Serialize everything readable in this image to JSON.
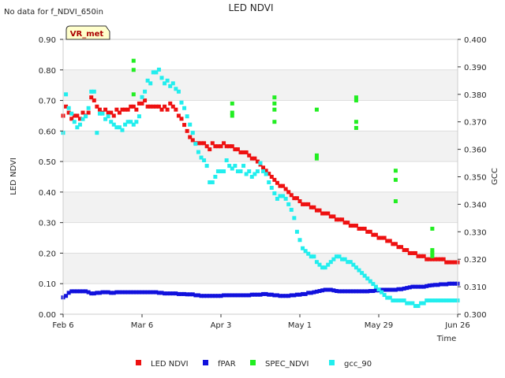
{
  "notice": "No data for f_NDVI_650in",
  "badge": "VR_met",
  "chart_data": {
    "type": "scatter",
    "title": "LED NDVI",
    "xlabel": "Time",
    "ylabel_left": "LED NDVI",
    "ylabel_right": "GCC",
    "xlim": [
      0,
      140
    ],
    "ylim_left": [
      0,
      0.9
    ],
    "ylim_right": [
      0.3,
      0.4
    ],
    "grid": true,
    "x_ticks": [
      {
        "label": "Feb 6",
        "x": 0
      },
      {
        "label": "Mar 6",
        "x": 28
      },
      {
        "label": "Apr 3",
        "x": 56
      },
      {
        "label": "May 1",
        "x": 84
      },
      {
        "label": "May 29",
        "x": 112
      },
      {
        "label": "Jun 26",
        "x": 140
      }
    ],
    "y_ticks_left": [
      "0.00",
      "0.10",
      "0.20",
      "0.30",
      "0.40",
      "0.50",
      "0.60",
      "0.70",
      "0.80",
      "0.90"
    ],
    "y_ticks_right": [
      "0.300",
      "0.310",
      "0.320",
      "0.330",
      "0.340",
      "0.350",
      "0.360",
      "0.370",
      "0.380",
      "0.390",
      "0.400"
    ],
    "legend": {
      "placement": "bottom"
    },
    "series": [
      {
        "name": "LED NDVI",
        "axis": "left",
        "color": "#ee1111",
        "x": [
          0,
          1,
          2,
          3,
          4,
          5,
          6,
          7,
          8,
          9,
          10,
          11,
          12,
          13,
          14,
          15,
          16,
          17,
          18,
          19,
          20,
          21,
          22,
          23,
          24,
          25,
          26,
          27,
          28,
          29,
          30,
          31,
          32,
          33,
          34,
          35,
          36,
          37,
          38,
          39,
          40,
          41,
          42,
          43,
          44,
          45,
          46,
          47,
          48,
          49,
          50,
          51,
          52,
          53,
          54,
          55,
          56,
          57,
          58,
          59,
          60,
          61,
          62,
          63,
          64,
          65,
          66,
          67,
          68,
          69,
          70,
          71,
          72,
          73,
          74,
          75,
          76,
          77,
          78,
          79,
          80,
          81,
          82,
          83,
          84,
          85,
          86,
          87,
          88,
          89,
          90,
          91,
          92,
          93,
          94,
          95,
          96,
          97,
          98,
          99,
          100,
          101,
          102,
          103,
          104,
          105,
          106,
          107,
          108,
          109,
          110,
          111,
          112,
          113,
          114,
          115,
          116,
          117,
          118,
          119,
          120,
          121,
          122,
          123,
          124,
          125,
          126,
          127,
          128,
          129,
          130,
          131,
          132,
          133,
          134,
          135,
          136,
          137,
          138,
          139,
          140
        ],
        "y": [
          0.65,
          0.68,
          0.66,
          0.64,
          0.65,
          0.65,
          0.64,
          0.66,
          0.65,
          0.66,
          0.71,
          0.7,
          0.68,
          0.67,
          0.66,
          0.67,
          0.66,
          0.66,
          0.65,
          0.67,
          0.66,
          0.67,
          0.67,
          0.67,
          0.68,
          0.68,
          0.67,
          0.69,
          0.69,
          0.7,
          0.68,
          0.68,
          0.68,
          0.68,
          0.68,
          0.67,
          0.68,
          0.67,
          0.69,
          0.68,
          0.67,
          0.65,
          0.64,
          0.62,
          0.6,
          0.58,
          0.57,
          0.56,
          0.56,
          0.56,
          0.56,
          0.55,
          0.54,
          0.56,
          0.55,
          0.55,
          0.55,
          0.56,
          0.55,
          0.55,
          0.55,
          0.54,
          0.54,
          0.53,
          0.53,
          0.53,
          0.52,
          0.51,
          0.51,
          0.5,
          0.49,
          0.48,
          0.47,
          0.46,
          0.45,
          0.44,
          0.43,
          0.42,
          0.42,
          0.41,
          0.4,
          0.39,
          0.38,
          0.38,
          0.37,
          0.36,
          0.36,
          0.36,
          0.35,
          0.35,
          0.34,
          0.34,
          0.33,
          0.33,
          0.33,
          0.32,
          0.32,
          0.31,
          0.31,
          0.31,
          0.3,
          0.3,
          0.29,
          0.29,
          0.29,
          0.28,
          0.28,
          0.28,
          0.27,
          0.27,
          0.26,
          0.26,
          0.25,
          0.25,
          0.25,
          0.24,
          0.24,
          0.23,
          0.23,
          0.22,
          0.22,
          0.21,
          0.21,
          0.2,
          0.2,
          0.2,
          0.19,
          0.19,
          0.19,
          0.18,
          0.18,
          0.18,
          0.18,
          0.18,
          0.18,
          0.18,
          0.17,
          0.17,
          0.17,
          0.17,
          0.17
        ]
      },
      {
        "name": "fPAR",
        "axis": "left",
        "color": "#1111dd",
        "x": [
          0,
          1,
          2,
          3,
          4,
          5,
          6,
          7,
          8,
          9,
          10,
          11,
          12,
          13,
          14,
          15,
          16,
          17,
          18,
          19,
          20,
          21,
          22,
          23,
          24,
          25,
          26,
          27,
          28,
          29,
          30,
          31,
          32,
          33,
          34,
          35,
          36,
          37,
          38,
          39,
          40,
          41,
          42,
          43,
          44,
          45,
          46,
          47,
          48,
          49,
          50,
          51,
          52,
          53,
          54,
          55,
          56,
          57,
          58,
          59,
          60,
          61,
          62,
          63,
          64,
          65,
          66,
          67,
          68,
          69,
          70,
          71,
          72,
          73,
          74,
          75,
          76,
          77,
          78,
          79,
          80,
          81,
          82,
          83,
          84,
          85,
          86,
          87,
          88,
          89,
          90,
          91,
          92,
          93,
          94,
          95,
          96,
          97,
          98,
          99,
          100,
          101,
          102,
          103,
          104,
          105,
          106,
          107,
          108,
          109,
          110,
          111,
          112,
          113,
          114,
          115,
          116,
          117,
          118,
          119,
          120,
          121,
          122,
          123,
          124,
          125,
          126,
          127,
          128,
          129,
          130,
          131,
          132,
          133,
          134,
          135,
          136,
          137,
          138,
          139,
          140
        ],
        "y": [
          0.055,
          0.06,
          0.07,
          0.075,
          0.075,
          0.075,
          0.075,
          0.075,
          0.075,
          0.072,
          0.068,
          0.068,
          0.07,
          0.07,
          0.072,
          0.072,
          0.072,
          0.07,
          0.07,
          0.072,
          0.072,
          0.072,
          0.072,
          0.072,
          0.072,
          0.072,
          0.072,
          0.072,
          0.072,
          0.072,
          0.072,
          0.072,
          0.072,
          0.072,
          0.07,
          0.07,
          0.068,
          0.068,
          0.068,
          0.068,
          0.068,
          0.066,
          0.066,
          0.066,
          0.065,
          0.065,
          0.065,
          0.062,
          0.062,
          0.06,
          0.06,
          0.06,
          0.06,
          0.06,
          0.06,
          0.06,
          0.06,
          0.062,
          0.062,
          0.062,
          0.062,
          0.062,
          0.062,
          0.062,
          0.062,
          0.062,
          0.062,
          0.064,
          0.064,
          0.064,
          0.064,
          0.066,
          0.066,
          0.064,
          0.064,
          0.062,
          0.062,
          0.06,
          0.06,
          0.06,
          0.06,
          0.062,
          0.062,
          0.064,
          0.064,
          0.066,
          0.066,
          0.07,
          0.07,
          0.072,
          0.074,
          0.076,
          0.078,
          0.08,
          0.08,
          0.08,
          0.078,
          0.076,
          0.075,
          0.075,
          0.075,
          0.075,
          0.075,
          0.075,
          0.075,
          0.075,
          0.075,
          0.075,
          0.075,
          0.076,
          0.076,
          0.078,
          0.078,
          0.08,
          0.08,
          0.08,
          0.08,
          0.08,
          0.08,
          0.082,
          0.082,
          0.084,
          0.086,
          0.088,
          0.09,
          0.09,
          0.09,
          0.09,
          0.09,
          0.092,
          0.094,
          0.095,
          0.096,
          0.096,
          0.098,
          0.098,
          0.098,
          0.1,
          0.1,
          0.1,
          0.1
        ]
      },
      {
        "name": "SPEC_NDVI",
        "axis": "left",
        "color": "#22ee22",
        "x": [
          25,
          25,
          25,
          60,
          60,
          60,
          75,
          75,
          75,
          75,
          90,
          90,
          90,
          104,
          104,
          104,
          104,
          118,
          118,
          118,
          131,
          131,
          131,
          131
        ],
        "y": [
          0.83,
          0.8,
          0.72,
          0.69,
          0.66,
          0.65,
          0.71,
          0.69,
          0.67,
          0.63,
          0.67,
          0.52,
          0.51,
          0.71,
          0.7,
          0.63,
          0.61,
          0.47,
          0.44,
          0.37,
          0.28,
          0.21,
          0.2,
          0.19
        ]
      },
      {
        "name": "gcc_90",
        "axis": "right",
        "color": "#22eeee",
        "x": [
          0,
          1,
          2,
          3,
          4,
          5,
          6,
          7,
          8,
          9,
          10,
          11,
          12,
          13,
          14,
          15,
          16,
          17,
          18,
          19,
          20,
          21,
          22,
          23,
          24,
          25,
          26,
          27,
          28,
          29,
          30,
          31,
          32,
          33,
          34,
          35,
          36,
          37,
          38,
          39,
          40,
          41,
          42,
          43,
          44,
          45,
          46,
          47,
          48,
          49,
          50,
          51,
          52,
          53,
          54,
          55,
          56,
          57,
          58,
          59,
          60,
          61,
          62,
          63,
          64,
          65,
          66,
          67,
          68,
          69,
          70,
          71,
          72,
          73,
          74,
          75,
          76,
          77,
          78,
          79,
          80,
          81,
          82,
          83,
          84,
          85,
          86,
          87,
          88,
          89,
          90,
          91,
          92,
          93,
          94,
          95,
          96,
          97,
          98,
          99,
          100,
          101,
          102,
          103,
          104,
          105,
          106,
          107,
          108,
          109,
          110,
          111,
          112,
          113,
          114,
          115,
          116,
          117,
          118,
          119,
          120,
          121,
          122,
          123,
          124,
          125,
          126,
          127,
          128,
          129,
          130,
          131,
          132,
          133,
          134,
          135,
          136,
          137,
          138,
          139,
          140
        ],
        "y": [
          0.366,
          0.38,
          0.375,
          0.373,
          0.37,
          0.368,
          0.369,
          0.371,
          0.372,
          0.375,
          0.381,
          0.381,
          0.366,
          0.373,
          0.373,
          0.371,
          0.372,
          0.37,
          0.369,
          0.368,
          0.368,
          0.367,
          0.369,
          0.37,
          0.37,
          0.369,
          0.37,
          0.372,
          0.379,
          0.381,
          0.385,
          0.384,
          0.388,
          0.388,
          0.389,
          0.386,
          0.384,
          0.385,
          0.383,
          0.384,
          0.382,
          0.381,
          0.377,
          0.375,
          0.372,
          0.369,
          0.366,
          0.362,
          0.359,
          0.357,
          0.356,
          0.354,
          0.348,
          0.348,
          0.35,
          0.352,
          0.352,
          0.352,
          0.356,
          0.354,
          0.353,
          0.354,
          0.352,
          0.352,
          0.354,
          0.351,
          0.352,
          0.35,
          0.351,
          0.352,
          0.355,
          0.352,
          0.351,
          0.348,
          0.346,
          0.344,
          0.342,
          0.343,
          0.343,
          0.342,
          0.34,
          0.338,
          0.335,
          0.33,
          0.327,
          0.324,
          0.323,
          0.322,
          0.321,
          0.321,
          0.319,
          0.318,
          0.317,
          0.317,
          0.318,
          0.319,
          0.32,
          0.321,
          0.321,
          0.32,
          0.32,
          0.319,
          0.319,
          0.318,
          0.317,
          0.316,
          0.315,
          0.314,
          0.313,
          0.312,
          0.311,
          0.31,
          0.309,
          0.308,
          0.307,
          0.306,
          0.306,
          0.305,
          0.305,
          0.305,
          0.305,
          0.305,
          0.304,
          0.304,
          0.304,
          0.303,
          0.303,
          0.304,
          0.304,
          0.305,
          0.305,
          0.305,
          0.305,
          0.305,
          0.305,
          0.305,
          0.305,
          0.305,
          0.305,
          0.305,
          0.305
        ]
      }
    ]
  }
}
